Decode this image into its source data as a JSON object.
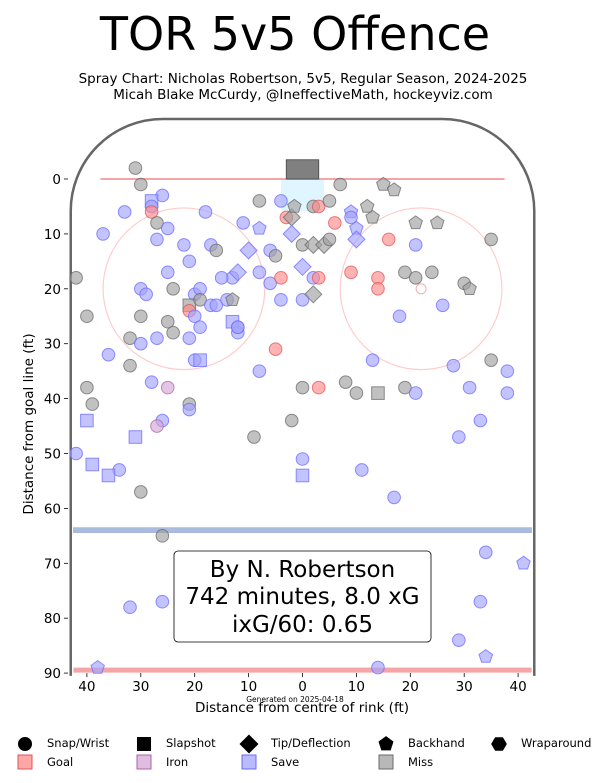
{
  "title": "TOR 5v5 Offence",
  "subtitle_1": "Spray Chart: Nicholas Robertson, 5v5, Regular Season, 2024-2025",
  "subtitle_2": "Micah Blake McCurdy, @IneffectiveMath, hockeyviz.com",
  "info_box": {
    "line1": "By N. Robertson",
    "line2": "742 minutes, 8.0 xG",
    "line3": "ixG/60: 0.65"
  },
  "footnote": "Generated on 2025-04-18",
  "legend": {
    "shapes": [
      {
        "key": "circle",
        "label": "Snap/Wrist"
      },
      {
        "key": "square",
        "label": "Slapshot"
      },
      {
        "key": "diamond",
        "label": "Tip/Deflection"
      },
      {
        "key": "pentagon",
        "label": "Backhand"
      },
      {
        "key": "hexagon",
        "label": "Wraparound"
      }
    ],
    "outcomes": [
      {
        "key": "goal",
        "label": "Goal",
        "color": "#ff8a8a"
      },
      {
        "key": "iron",
        "label": "Iron",
        "color": "#d6a6d6"
      },
      {
        "key": "save",
        "label": "Save",
        "color": "#a3a3ff"
      },
      {
        "key": "miss",
        "label": "Miss",
        "color": "#a0a0a0"
      }
    ]
  },
  "chart_data": {
    "type": "scatter",
    "xlabel": "Distance from centre of rink (ft)",
    "ylabel": "Distance from goal line (ft)",
    "xlim": [
      -43,
      43
    ],
    "ylim": [
      -11,
      90
    ],
    "x_ticks": [
      -40,
      -30,
      -20,
      -10,
      0,
      10,
      20,
      30,
      40
    ],
    "x_tick_labels": [
      "40",
      "30",
      "20",
      "10",
      "0",
      "10",
      "20",
      "30",
      "40"
    ],
    "y_ticks": [
      0,
      10,
      20,
      30,
      40,
      50,
      60,
      70,
      80,
      90
    ],
    "grid": false,
    "colors": {
      "goal": "#ff8a8a",
      "iron": "#d6a6d6",
      "save": "#a3a3ff",
      "miss": "#a0a0a0",
      "boards": "#666666",
      "goal_line": "#f4a6a6",
      "blue_line": "#aabbdd",
      "crease": "#dff5ff",
      "circles": "#ffcccc",
      "net": "#808080"
    },
    "shots": [
      {
        "x": -26,
        "y": 3,
        "shape": "circle",
        "result": "save"
      },
      {
        "x": -8,
        "y": 4,
        "shape": "circle",
        "result": "miss"
      },
      {
        "x": -31,
        "y": -2,
        "shape": "circle",
        "result": "miss"
      },
      {
        "x": -30,
        "y": 1,
        "shape": "circle",
        "result": "miss"
      },
      {
        "x": -28,
        "y": 4,
        "shape": "square",
        "result": "save"
      },
      {
        "x": -28,
        "y": 5,
        "shape": "circle",
        "result": "save"
      },
      {
        "x": -28,
        "y": 6,
        "shape": "circle",
        "result": "goal"
      },
      {
        "x": -27,
        "y": 8,
        "shape": "circle",
        "result": "miss"
      },
      {
        "x": -33,
        "y": 6,
        "shape": "circle",
        "result": "save"
      },
      {
        "x": -37,
        "y": 10,
        "shape": "circle",
        "result": "save"
      },
      {
        "x": -25,
        "y": 9,
        "shape": "circle",
        "result": "save"
      },
      {
        "x": -27,
        "y": 11,
        "shape": "circle",
        "result": "save"
      },
      {
        "x": -22,
        "y": 12,
        "shape": "circle",
        "result": "save"
      },
      {
        "x": -21,
        "y": 15,
        "shape": "circle",
        "result": "save"
      },
      {
        "x": -18,
        "y": 6,
        "shape": "circle",
        "result": "save"
      },
      {
        "x": -17,
        "y": 12,
        "shape": "circle",
        "result": "save"
      },
      {
        "x": -16,
        "y": 13,
        "shape": "circle",
        "result": "miss"
      },
      {
        "x": -13,
        "y": 18,
        "shape": "circle",
        "result": "save"
      },
      {
        "x": -12,
        "y": 17,
        "shape": "diamond",
        "result": "save"
      },
      {
        "x": -10,
        "y": 13,
        "shape": "diamond",
        "result": "save"
      },
      {
        "x": -11,
        "y": 8,
        "shape": "circle",
        "result": "save"
      },
      {
        "x": -8,
        "y": 9,
        "shape": "pentagon",
        "result": "save"
      },
      {
        "x": -6,
        "y": 13,
        "shape": "circle",
        "result": "save"
      },
      {
        "x": -4,
        "y": 4,
        "shape": "circle",
        "result": "save"
      },
      {
        "x": -3,
        "y": 7,
        "shape": "circle",
        "result": "goal"
      },
      {
        "x": -2,
        "y": 7,
        "shape": "diamond",
        "result": "miss"
      },
      {
        "x": -1.5,
        "y": 5,
        "shape": "pentagon",
        "result": "miss"
      },
      {
        "x": -2,
        "y": 10,
        "shape": "diamond",
        "result": "save"
      },
      {
        "x": 0,
        "y": 12,
        "shape": "circle",
        "result": "miss"
      },
      {
        "x": 2,
        "y": 12,
        "shape": "diamond",
        "result": "miss"
      },
      {
        "x": 2,
        "y": 5,
        "shape": "circle",
        "result": "miss"
      },
      {
        "x": 3,
        "y": 5,
        "shape": "circle",
        "result": "goal"
      },
      {
        "x": 4,
        "y": 12,
        "shape": "diamond",
        "result": "miss"
      },
      {
        "x": 5,
        "y": 4,
        "shape": "circle",
        "result": "miss"
      },
      {
        "x": 6,
        "y": 8,
        "shape": "circle",
        "result": "goal"
      },
      {
        "x": 5,
        "y": 11,
        "shape": "circle",
        "result": "miss"
      },
      {
        "x": 7,
        "y": 1,
        "shape": "circle",
        "result": "miss"
      },
      {
        "x": 9,
        "y": 6,
        "shape": "pentagon",
        "result": "save"
      },
      {
        "x": 9,
        "y": 7,
        "shape": "circle",
        "result": "save"
      },
      {
        "x": 10,
        "y": 9,
        "shape": "pentagon",
        "result": "save"
      },
      {
        "x": 10,
        "y": 11,
        "shape": "diamond",
        "result": "save"
      },
      {
        "x": 12,
        "y": 5,
        "shape": "pentagon",
        "result": "miss"
      },
      {
        "x": 13,
        "y": 7,
        "shape": "pentagon",
        "result": "miss"
      },
      {
        "x": 15,
        "y": 1,
        "shape": "pentagon",
        "result": "miss"
      },
      {
        "x": 17,
        "y": 2,
        "shape": "pentagon",
        "result": "miss"
      },
      {
        "x": 16,
        "y": 11,
        "shape": "circle",
        "result": "goal"
      },
      {
        "x": 21,
        "y": 8,
        "shape": "pentagon",
        "result": "miss"
      },
      {
        "x": 21,
        "y": 12,
        "shape": "circle",
        "result": "save"
      },
      {
        "x": 25,
        "y": 8,
        "shape": "pentagon",
        "result": "miss"
      },
      {
        "x": 35,
        "y": 11,
        "shape": "circle",
        "result": "miss"
      },
      {
        "x": -42,
        "y": 18,
        "shape": "circle",
        "result": "miss"
      },
      {
        "x": -40,
        "y": 25,
        "shape": "circle",
        "result": "miss"
      },
      {
        "x": -30,
        "y": 20,
        "shape": "circle",
        "result": "save"
      },
      {
        "x": -29,
        "y": 21,
        "shape": "circle",
        "result": "save"
      },
      {
        "x": -25,
        "y": 17,
        "shape": "circle",
        "result": "save"
      },
      {
        "x": -24,
        "y": 20,
        "shape": "circle",
        "result": "miss"
      },
      {
        "x": -20,
        "y": 21,
        "shape": "circle",
        "result": "save"
      },
      {
        "x": -19,
        "y": 20,
        "shape": "circle",
        "result": "save"
      },
      {
        "x": -21,
        "y": 23,
        "shape": "square",
        "result": "miss"
      },
      {
        "x": -21,
        "y": 24,
        "shape": "circle",
        "result": "goal"
      },
      {
        "x": -20,
        "y": 25,
        "shape": "circle",
        "result": "save"
      },
      {
        "x": -19,
        "y": 22,
        "shape": "circle",
        "result": "miss"
      },
      {
        "x": -17,
        "y": 23,
        "shape": "circle",
        "result": "save"
      },
      {
        "x": -16,
        "y": 23,
        "shape": "circle",
        "result": "save"
      },
      {
        "x": -15,
        "y": 18,
        "shape": "circle",
        "result": "save"
      },
      {
        "x": -14,
        "y": 22,
        "shape": "circle",
        "result": "save"
      },
      {
        "x": -13,
        "y": 22,
        "shape": "pentagon",
        "result": "miss"
      },
      {
        "x": -13,
        "y": 26,
        "shape": "square",
        "result": "save"
      },
      {
        "x": -12,
        "y": 28,
        "shape": "circle",
        "result": "save"
      },
      {
        "x": -19,
        "y": 27,
        "shape": "circle",
        "result": "save"
      },
      {
        "x": -21,
        "y": 29,
        "shape": "circle",
        "result": "save"
      },
      {
        "x": -25,
        "y": 26,
        "shape": "circle",
        "result": "miss"
      },
      {
        "x": -24,
        "y": 28,
        "shape": "circle",
        "result": "miss"
      },
      {
        "x": -27,
        "y": 29,
        "shape": "circle",
        "result": "save"
      },
      {
        "x": -30,
        "y": 25,
        "shape": "circle",
        "result": "miss"
      },
      {
        "x": -32,
        "y": 29,
        "shape": "circle",
        "result": "miss"
      },
      {
        "x": -30,
        "y": 30,
        "shape": "circle",
        "result": "save"
      },
      {
        "x": -36,
        "y": 32,
        "shape": "circle",
        "result": "save"
      },
      {
        "x": -32,
        "y": 34,
        "shape": "circle",
        "result": "miss"
      },
      {
        "x": -20,
        "y": 33,
        "shape": "circle",
        "result": "save"
      },
      {
        "x": -19,
        "y": 33,
        "shape": "square",
        "result": "save"
      },
      {
        "x": -12,
        "y": 27,
        "shape": "circle",
        "result": "save"
      },
      {
        "x": -8,
        "y": 17,
        "shape": "circle",
        "result": "save"
      },
      {
        "x": -6,
        "y": 19,
        "shape": "circle",
        "result": "save"
      },
      {
        "x": -4,
        "y": 18,
        "shape": "circle",
        "result": "goal"
      },
      {
        "x": -5,
        "y": 14,
        "shape": "circle",
        "result": "miss"
      },
      {
        "x": -4,
        "y": 22,
        "shape": "circle",
        "result": "save"
      },
      {
        "x": 0,
        "y": 16,
        "shape": "diamond",
        "result": "save"
      },
      {
        "x": 0,
        "y": 22,
        "shape": "circle",
        "result": "save"
      },
      {
        "x": 2,
        "y": 18,
        "shape": "circle",
        "result": "save"
      },
      {
        "x": 3,
        "y": 18,
        "shape": "circle",
        "result": "goal"
      },
      {
        "x": 2,
        "y": 21,
        "shape": "diamond",
        "result": "miss"
      },
      {
        "x": -12,
        "y": 27,
        "shape": "circle",
        "result": "save"
      },
      {
        "x": -5,
        "y": 31,
        "shape": "circle",
        "result": "goal"
      },
      {
        "x": 9,
        "y": 17,
        "shape": "circle",
        "result": "goal"
      },
      {
        "x": 14,
        "y": 18,
        "shape": "circle",
        "result": "goal"
      },
      {
        "x": 14,
        "y": 20,
        "shape": "circle",
        "result": "goal"
      },
      {
        "x": 19,
        "y": 17,
        "shape": "circle",
        "result": "miss"
      },
      {
        "x": 21,
        "y": 18,
        "shape": "circle",
        "result": "miss"
      },
      {
        "x": 24,
        "y": 17,
        "shape": "circle",
        "result": "miss"
      },
      {
        "x": 30,
        "y": 19,
        "shape": "circle",
        "result": "miss"
      },
      {
        "x": 31,
        "y": 20,
        "shape": "pentagon",
        "result": "miss"
      },
      {
        "x": 18,
        "y": 25,
        "shape": "circle",
        "result": "save"
      },
      {
        "x": 26,
        "y": 23,
        "shape": "circle",
        "result": "save"
      },
      {
        "x": 13,
        "y": 33,
        "shape": "circle",
        "result": "save"
      },
      {
        "x": 28,
        "y": 34,
        "shape": "circle",
        "result": "save"
      },
      {
        "x": 31,
        "y": 38,
        "shape": "circle",
        "result": "save"
      },
      {
        "x": 35,
        "y": 33,
        "shape": "circle",
        "result": "miss"
      },
      {
        "x": 38,
        "y": 35,
        "shape": "circle",
        "result": "save"
      },
      {
        "x": 38,
        "y": 39,
        "shape": "circle",
        "result": "save"
      },
      {
        "x": -40,
        "y": 38,
        "shape": "circle",
        "result": "miss"
      },
      {
        "x": -39,
        "y": 41,
        "shape": "circle",
        "result": "miss"
      },
      {
        "x": -28,
        "y": 37,
        "shape": "circle",
        "result": "save"
      },
      {
        "x": -25,
        "y": 38,
        "shape": "circle",
        "result": "iron"
      },
      {
        "x": -21,
        "y": 41,
        "shape": "circle",
        "result": "miss"
      },
      {
        "x": -21,
        "y": 42,
        "shape": "circle",
        "result": "save"
      },
      {
        "x": -8,
        "y": 35,
        "shape": "circle",
        "result": "save"
      },
      {
        "x": 0,
        "y": 38,
        "shape": "circle",
        "result": "miss"
      },
      {
        "x": 3,
        "y": 38,
        "shape": "circle",
        "result": "goal"
      },
      {
        "x": 8,
        "y": 37,
        "shape": "circle",
        "result": "miss"
      },
      {
        "x": 10,
        "y": 39,
        "shape": "circle",
        "result": "miss"
      },
      {
        "x": 14,
        "y": 39,
        "shape": "square",
        "result": "miss"
      },
      {
        "x": 19,
        "y": 38,
        "shape": "circle",
        "result": "miss"
      },
      {
        "x": 21,
        "y": 39,
        "shape": "circle",
        "result": "save"
      },
      {
        "x": -40,
        "y": 44,
        "shape": "square",
        "result": "save"
      },
      {
        "x": -26,
        "y": 44,
        "shape": "circle",
        "result": "save"
      },
      {
        "x": -27,
        "y": 45,
        "shape": "circle",
        "result": "iron"
      },
      {
        "x": -9,
        "y": 47,
        "shape": "circle",
        "result": "miss"
      },
      {
        "x": -2,
        "y": 44,
        "shape": "circle",
        "result": "miss"
      },
      {
        "x": -31,
        "y": 47,
        "shape": "square",
        "result": "save"
      },
      {
        "x": -42,
        "y": 50,
        "shape": "circle",
        "result": "save"
      },
      {
        "x": -39,
        "y": 52,
        "shape": "square",
        "result": "save"
      },
      {
        "x": -34,
        "y": 53,
        "shape": "circle",
        "result": "save"
      },
      {
        "x": -36,
        "y": 54,
        "shape": "square",
        "result": "save"
      },
      {
        "x": 0,
        "y": 51,
        "shape": "circle",
        "result": "save"
      },
      {
        "x": 0,
        "y": 54,
        "shape": "square",
        "result": "save"
      },
      {
        "x": 11,
        "y": 53,
        "shape": "circle",
        "result": "save"
      },
      {
        "x": 29,
        "y": 47,
        "shape": "circle",
        "result": "save"
      },
      {
        "x": 33,
        "y": 44,
        "shape": "circle",
        "result": "save"
      },
      {
        "x": -30,
        "y": 57,
        "shape": "circle",
        "result": "miss"
      },
      {
        "x": 17,
        "y": 58,
        "shape": "circle",
        "result": "save"
      },
      {
        "x": -26,
        "y": 65,
        "shape": "circle",
        "result": "miss"
      },
      {
        "x": 34,
        "y": 68,
        "shape": "circle",
        "result": "save"
      },
      {
        "x": 41,
        "y": 70,
        "shape": "pentagon",
        "result": "save"
      },
      {
        "x": -32,
        "y": 78,
        "shape": "circle",
        "result": "save"
      },
      {
        "x": -26,
        "y": 77,
        "shape": "circle",
        "result": "save"
      },
      {
        "x": 33,
        "y": 77,
        "shape": "circle",
        "result": "save"
      },
      {
        "x": 29,
        "y": 84,
        "shape": "circle",
        "result": "save"
      },
      {
        "x": 34,
        "y": 87,
        "shape": "pentagon",
        "result": "save"
      },
      {
        "x": -38,
        "y": 89,
        "shape": "pentagon",
        "result": "save"
      },
      {
        "x": 14,
        "y": 89,
        "shape": "circle",
        "result": "save"
      }
    ]
  }
}
